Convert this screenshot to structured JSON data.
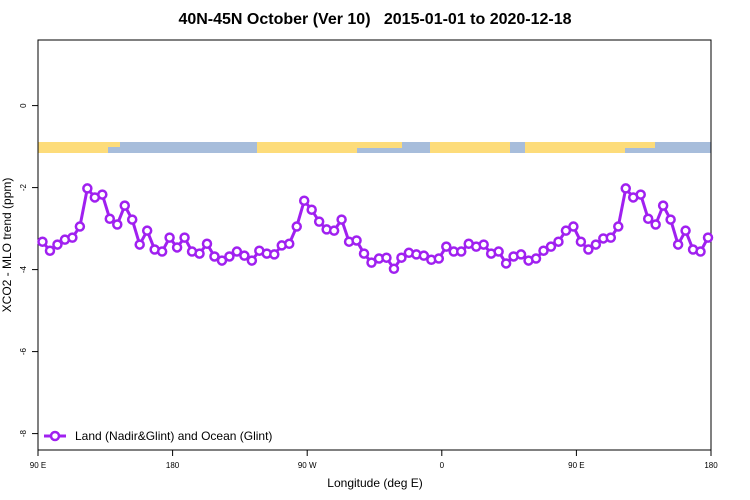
{
  "chart_data": {
    "type": "line",
    "title": "40N-45N October (Ver 10)   2015-01-01 to 2020-12-18",
    "x_label": "Longitude (deg E)",
    "y_label": "XCO2 - MLO trend (ppm)",
    "xlim": [
      90,
      540
    ],
    "ylim": [
      -8.4,
      1.6
    ],
    "xticks": [
      {
        "value": 90,
        "label": "90 E"
      },
      180,
      {
        "value": 270,
        "label": "90 W"
      },
      {
        "value": 360,
        "label": "0"
      },
      {
        "value": 450,
        "label": "90 E"
      },
      {
        "value": 540,
        "label": "180"
      }
    ],
    "yticks": [
      0,
      -2,
      -4,
      -6,
      -8
    ],
    "legend": "bottom-left",
    "x": [
      93,
      98,
      103,
      108,
      113,
      118,
      123,
      128,
      133,
      138,
      143,
      148,
      153,
      158,
      163,
      168,
      173,
      178,
      183,
      188,
      193,
      198,
      203,
      208,
      213,
      218,
      223,
      228,
      233,
      238,
      243,
      248,
      253,
      258,
      263,
      268,
      273,
      278,
      283,
      288,
      293,
      298,
      303,
      308,
      313,
      318,
      323,
      328,
      333,
      338,
      343,
      348,
      353,
      358,
      363,
      368,
      373,
      378,
      383,
      388,
      393,
      398,
      403,
      408,
      413,
      418,
      423,
      428,
      433,
      438,
      443,
      448,
      453,
      458,
      463,
      468,
      473,
      478,
      483,
      488,
      493,
      498,
      503,
      508,
      513,
      518,
      523,
      528,
      533,
      538
    ],
    "series": [
      {
        "name": "Land (Nadir&Glint) and Ocean (Glint)",
        "color": "#a020f0",
        "values": [
          -3.32,
          -3.54,
          -3.39,
          -3.27,
          -3.22,
          -2.95,
          -2.02,
          -2.24,
          -2.17,
          -2.76,
          -2.9,
          -2.44,
          -2.78,
          -3.39,
          -3.05,
          -3.51,
          -3.56,
          -3.22,
          -3.46,
          -3.22,
          -3.56,
          -3.61,
          -3.37,
          -3.68,
          -3.78,
          -3.68,
          -3.56,
          -3.66,
          -3.78,
          -3.54,
          -3.61,
          -3.63,
          -3.41,
          -3.37,
          -2.95,
          -2.32,
          -2.54,
          -2.83,
          -3.02,
          -3.05,
          -2.78,
          -3.32,
          -3.29,
          -3.61,
          -3.83,
          -3.73,
          -3.71,
          -3.98,
          -3.71,
          -3.59,
          -3.63,
          -3.66,
          -3.76,
          -3.73,
          -3.44,
          -3.56,
          -3.56,
          -3.37,
          -3.44,
          -3.39,
          -3.61,
          -3.56,
          -3.85,
          -3.68,
          -3.63,
          -3.78,
          -3.73,
          -3.54,
          -3.44,
          -3.32,
          -3.05,
          -2.95,
          -3.32,
          -3.51,
          -3.39,
          -3.24,
          -3.22,
          -2.95,
          -2.02,
          -2.24,
          -2.17,
          -2.76,
          -2.9,
          -2.44,
          -2.78,
          -3.39,
          -3.05,
          -3.51,
          -3.56,
          -3.22
        ]
      }
    ]
  }
}
